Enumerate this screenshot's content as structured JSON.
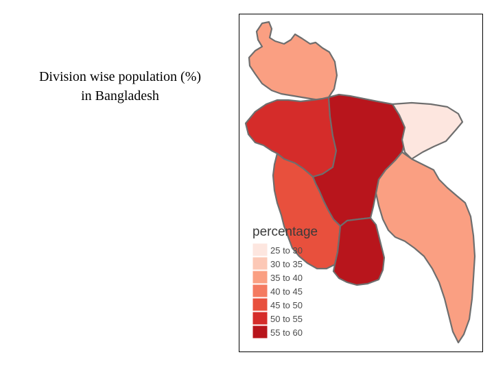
{
  "caption": {
    "line1": "Division wise population (%)",
    "line2": "in Bangladesh"
  },
  "legend": {
    "title": "percentage",
    "items": [
      {
        "label": "25 to 30",
        "color": "#fde6df"
      },
      {
        "label": "30 to 35",
        "color": "#fcc8b6"
      },
      {
        "label": "35 to 40",
        "color": "#fa9f82"
      },
      {
        "label": "40 to 45",
        "color": "#f47a60"
      },
      {
        "label": "45 to 50",
        "color": "#e8503d"
      },
      {
        "label": "50 to 55",
        "color": "#d52c2a"
      },
      {
        "label": "55 to 60",
        "color": "#b8151c"
      }
    ]
  },
  "map": {
    "regions": [
      {
        "name": "rangpur",
        "class": "35 to 40",
        "color": "#fa9f82"
      },
      {
        "name": "rajshahi",
        "class": "50 to 55",
        "color": "#d52c2a"
      },
      {
        "name": "dhaka",
        "class": "55 to 60",
        "color": "#b8151c"
      },
      {
        "name": "sylhet",
        "class": "25 to 30",
        "color": "#fde6df"
      },
      {
        "name": "khulna",
        "class": "45 to 50",
        "color": "#e8503d"
      },
      {
        "name": "barisal",
        "class": "55 to 60",
        "color": "#b8151c"
      },
      {
        "name": "chittagong",
        "class": "35 to 40",
        "color": "#fa9f82"
      }
    ],
    "border_color": "#6e6e6e"
  }
}
